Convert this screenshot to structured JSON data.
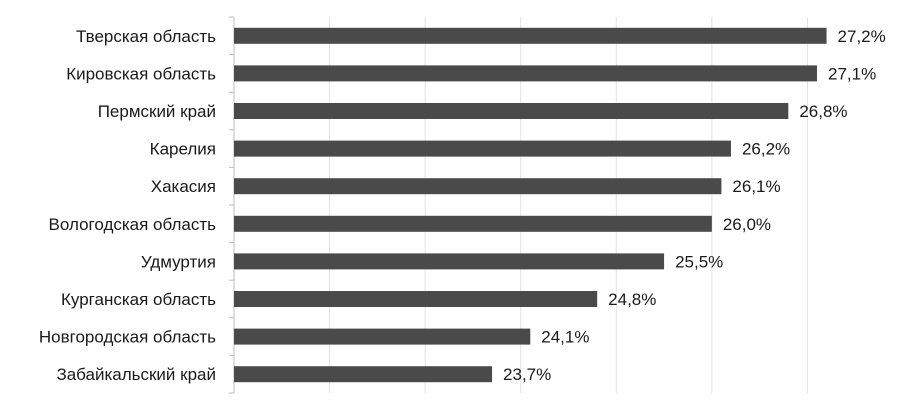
{
  "chart_data": {
    "type": "bar",
    "orientation": "horizontal",
    "categories": [
      "Тверская область",
      "Кировская область",
      "Пермский край",
      "Карелия",
      "Хакасия",
      "Вологодская область",
      "Удмуртия",
      "Курганская область",
      "Новгородская область",
      "Забайкальский край"
    ],
    "values": [
      27.2,
      27.1,
      26.8,
      26.2,
      26.1,
      26.0,
      25.5,
      24.8,
      24.1,
      23.7
    ],
    "value_labels": [
      "27,2%",
      "27,1%",
      "26,8%",
      "26,2%",
      "26,1%",
      "26,0%",
      "25,5%",
      "24,8%",
      "24,1%",
      "23,7%"
    ],
    "xlim": [
      21.0,
      28.0
    ],
    "grid": true,
    "bar_color": "#4a4a4a",
    "title": "",
    "xlabel": "",
    "ylabel": ""
  }
}
